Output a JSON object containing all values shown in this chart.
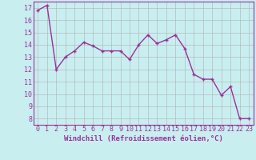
{
  "x": [
    0,
    1,
    2,
    3,
    4,
    5,
    6,
    7,
    8,
    9,
    10,
    11,
    12,
    13,
    14,
    15,
    16,
    17,
    18,
    19,
    20,
    21,
    22,
    23
  ],
  "y": [
    16.8,
    17.2,
    12.0,
    13.0,
    13.5,
    14.2,
    13.9,
    13.5,
    13.5,
    13.5,
    12.8,
    14.0,
    14.8,
    14.1,
    14.4,
    14.8,
    13.7,
    11.6,
    11.2,
    11.2,
    9.9,
    10.6,
    8.0,
    8.0
  ],
  "line_color": "#993399",
  "marker": "+",
  "marker_size": 3,
  "line_width": 1.0,
  "background_color": "#c8eef0",
  "grid_color": "#b0b0b0",
  "xlabel": "Windchill (Refroidissement éolien,°C)",
  "xlabel_color": "#993399",
  "xlabel_fontsize": 6.5,
  "ylabel_ticks": [
    8,
    9,
    10,
    11,
    12,
    13,
    14,
    15,
    16,
    17
  ],
  "xlim": [
    -0.5,
    23.5
  ],
  "ylim": [
    7.5,
    17.5
  ],
  "xtick_labels": [
    "0",
    "1",
    "2",
    "3",
    "4",
    "5",
    "6",
    "7",
    "8",
    "9",
    "10",
    "11",
    "12",
    "13",
    "14",
    "15",
    "16",
    "17",
    "18",
    "19",
    "20",
    "21",
    "22",
    "23"
  ],
  "tick_fontsize": 6.0,
  "tick_color": "#993399",
  "spine_color": "#993399"
}
